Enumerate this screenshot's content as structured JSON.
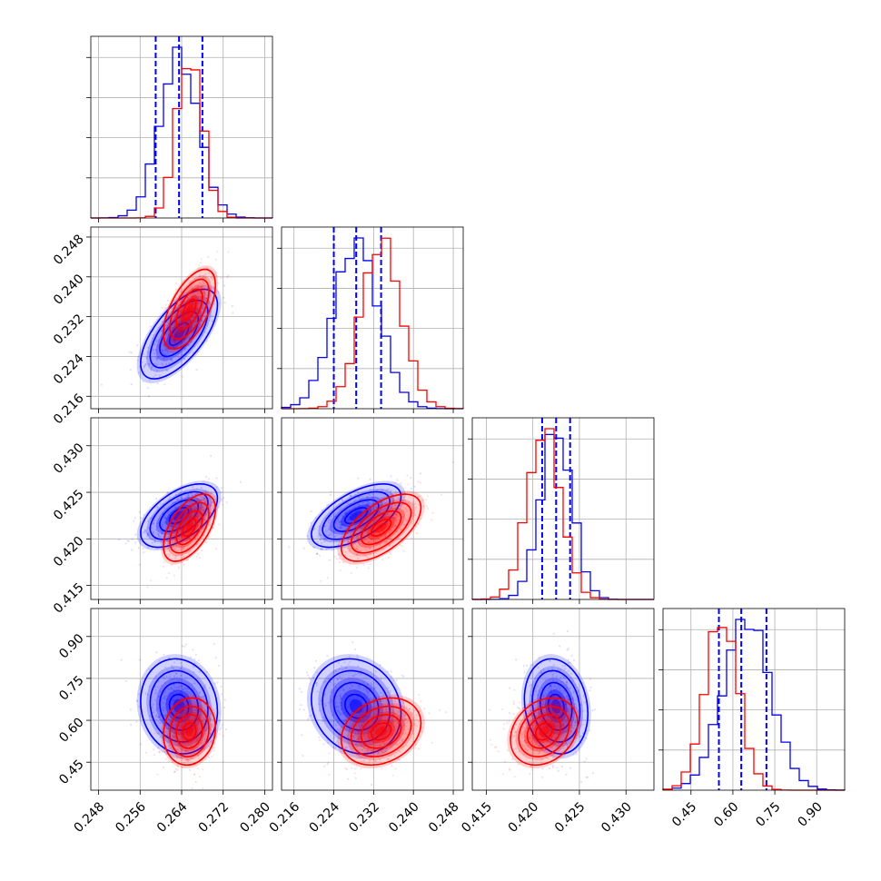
{
  "chart_data": {
    "type": "corner",
    "title": "",
    "grid": true,
    "colors": {
      "series_a": "#0000ff",
      "series_b": "#ff0000"
    },
    "parameters": [
      {
        "xlim": [
          0.2465,
          0.2815
        ],
        "ticks": [
          0.248,
          0.256,
          0.264,
          0.272,
          0.28
        ],
        "tick_labels": [
          "0.248",
          "0.256",
          "0.264",
          "0.272",
          "0.280"
        ]
      },
      {
        "xlim": [
          0.2135,
          0.25
        ],
        "ticks": [
          0.216,
          0.224,
          0.232,
          0.24,
          0.248
        ],
        "tick_labels": [
          "0.216",
          "0.224",
          "0.232",
          "0.240",
          "0.248"
        ]
      },
      {
        "xlim": [
          0.4135,
          0.433
        ],
        "ticks": [
          0.415,
          0.42,
          0.425,
          0.43
        ],
        "tick_labels": [
          "0.415",
          "0.420",
          "0.425",
          "0.430"
        ]
      },
      {
        "xlim": [
          0.35,
          1.0
        ],
        "ticks": [
          0.45,
          0.6,
          0.75,
          0.9
        ],
        "tick_labels": [
          "0.45",
          "0.60",
          "0.75",
          "0.90"
        ]
      }
    ],
    "series": [
      {
        "color": "#0000ff",
        "means": [
          0.2635,
          0.2285,
          0.4225,
          0.65
        ],
        "sigmas": [
          0.0037,
          0.0045,
          0.0017,
          0.085
        ],
        "correlations": {
          "1-0": 0.65,
          "2-0": 0.55,
          "2-1": 0.6,
          "3-0": -0.1,
          "3-1": -0.15,
          "3-2": -0.15
        },
        "quantiles": [
          [
            0.259,
            0.2635,
            0.268
          ],
          [
            0.224,
            0.2285,
            0.2335
          ],
          [
            0.421,
            0.4225,
            0.424
          ],
          [
            0.55,
            0.63,
            0.72
          ]
        ]
      },
      {
        "color": "#ff0000",
        "means": [
          0.2655,
          0.2335,
          0.4212,
          0.56
        ],
        "sigmas": [
          0.0025,
          0.004,
          0.0018,
          0.06
        ],
        "correlations": {
          "1-0": 0.6,
          "2-0": 0.55,
          "2-1": 0.6,
          "3-0": 0.1,
          "3-1": 0.25,
          "3-2": 0.25
        },
        "quantiles": []
      }
    ]
  }
}
